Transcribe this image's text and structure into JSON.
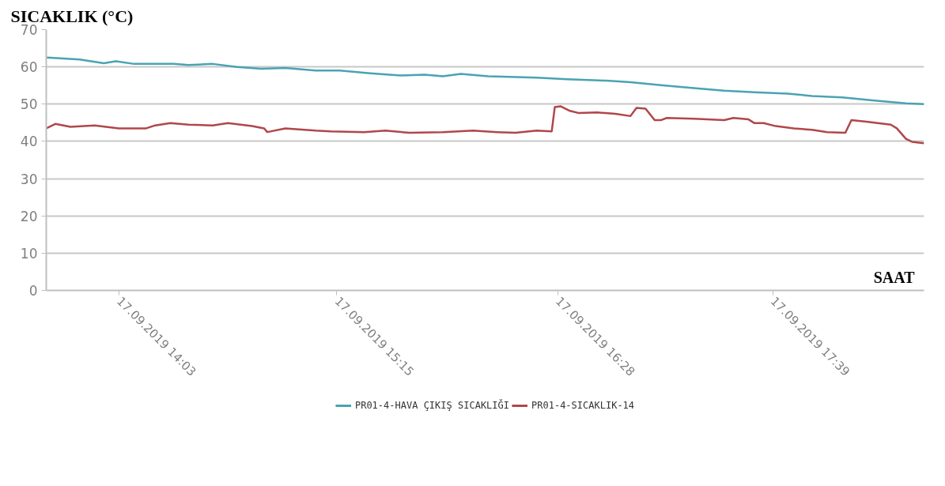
{
  "chart_data": {
    "type": "line",
    "ylabel": "SICAKLIK (°C)",
    "xlabel": "SAAT",
    "xlim": [
      "2019-09-17T13:39",
      "2019-09-17T18:29"
    ],
    "ylim": [
      0,
      70
    ],
    "xticks": [
      {
        "value": "2019-09-17T14:03",
        "label": "17.09.2019 14:03"
      },
      {
        "value": "2019-09-17T15:15",
        "label": "17.09.2019 15:15"
      },
      {
        "value": "2019-09-17T16:28",
        "label": "17.09.2019 16:28"
      },
      {
        "value": "2019-09-17T17:39",
        "label": "17.09.2019 17:39"
      }
    ],
    "yticks": [
      0,
      10,
      20,
      30,
      40,
      50,
      60,
      70
    ],
    "grid": "y",
    "legend": "bottom",
    "line_style": "solid",
    "series": [
      {
        "name": "PR01-4-HAVA ÇIKIŞ SICAKLIĞI",
        "color": "#4aa3b3",
        "x": [
          "2019-09-17T13:39",
          "2019-09-17T13:50",
          "2019-09-17T13:58",
          "2019-09-17T14:02",
          "2019-09-17T14:08",
          "2019-09-17T14:21",
          "2019-09-17T14:26",
          "2019-09-17T14:34",
          "2019-09-17T14:42",
          "2019-09-17T14:50",
          "2019-09-17T14:58",
          "2019-09-17T15:08",
          "2019-09-17T15:16",
          "2019-09-17T15:26",
          "2019-09-17T15:36",
          "2019-09-17T15:44",
          "2019-09-17T15:50",
          "2019-09-17T15:56",
          "2019-09-17T16:05",
          "2019-09-17T16:21",
          "2019-09-17T16:31",
          "2019-09-17T16:44",
          "2019-09-17T16:52",
          "2019-09-17T17:02",
          "2019-09-17T17:13",
          "2019-09-17T17:23",
          "2019-09-17T17:33",
          "2019-09-17T17:44",
          "2019-09-17T17:52",
          "2019-09-17T18:02",
          "2019-09-17T18:12",
          "2019-09-17T18:23",
          "2019-09-17T18:29"
        ],
        "values": [
          62.5,
          62,
          61,
          61.5,
          60.8,
          60.8,
          60.5,
          60.8,
          60,
          59.5,
          59.7,
          59,
          59,
          58.3,
          57.7,
          57.9,
          57.5,
          58.1,
          57.5,
          57.1,
          56.7,
          56.3,
          55.9,
          55.1,
          54.3,
          53.6,
          53.2,
          52.8,
          52.2,
          51.8,
          51,
          50.2,
          50
        ]
      },
      {
        "name": "PR01-4-SICAKLIK-14",
        "color": "#b0474a",
        "x": [
          "2019-09-17T13:39",
          "2019-09-17T13:42",
          "2019-09-17T13:47",
          "2019-09-17T13:55",
          "2019-09-17T14:03",
          "2019-09-17T14:12",
          "2019-09-17T14:15",
          "2019-09-17T14:20",
          "2019-09-17T14:26",
          "2019-09-17T14:34",
          "2019-09-17T14:39",
          "2019-09-17T14:47",
          "2019-09-17T14:51",
          "2019-09-17T14:52",
          "2019-09-17T14:58",
          "2019-09-17T15:08",
          "2019-09-17T15:13",
          "2019-09-17T15:24",
          "2019-09-17T15:31",
          "2019-09-17T15:39",
          "2019-09-17T15:50",
          "2019-09-17T16:00",
          "2019-09-17T16:08",
          "2019-09-17T16:14",
          "2019-09-17T16:21",
          "2019-09-17T16:26",
          "2019-09-17T16:27",
          "2019-09-17T16:29",
          "2019-09-17T16:32",
          "2019-09-17T16:35",
          "2019-09-17T16:41",
          "2019-09-17T16:47",
          "2019-09-17T16:52",
          "2019-09-17T16:54",
          "2019-09-17T16:57",
          "2019-09-17T17:00",
          "2019-09-17T17:02",
          "2019-09-17T17:04",
          "2019-09-17T17:13",
          "2019-09-17T17:23",
          "2019-09-17T17:26",
          "2019-09-17T17:31",
          "2019-09-17T17:33",
          "2019-09-17T17:36",
          "2019-09-17T17:40",
          "2019-09-17T17:46",
          "2019-09-17T17:52",
          "2019-09-17T17:57",
          "2019-09-17T18:03",
          "2019-09-17T18:05",
          "2019-09-17T18:10",
          "2019-09-17T18:18",
          "2019-09-17T18:20",
          "2019-09-17T18:23",
          "2019-09-17T18:25",
          "2019-09-17T18:29"
        ],
        "values": [
          43.5,
          44.7,
          43.9,
          44.3,
          43.5,
          43.5,
          44.3,
          44.9,
          44.5,
          44.3,
          44.9,
          44.1,
          43.5,
          42.5,
          43.5,
          42.9,
          42.7,
          42.5,
          42.9,
          42.3,
          42.5,
          42.9,
          42.5,
          42.3,
          42.9,
          42.7,
          49.2,
          49.4,
          48.2,
          47.6,
          47.8,
          47.4,
          46.8,
          49,
          48.8,
          45.7,
          45.7,
          46.3,
          46.1,
          45.7,
          46.3,
          45.9,
          44.9,
          44.9,
          44.1,
          43.5,
          43.1,
          42.5,
          42.3,
          45.7,
          45.3,
          44.5,
          43.5,
          40.7,
          39.9,
          39.5
        ]
      }
    ]
  }
}
